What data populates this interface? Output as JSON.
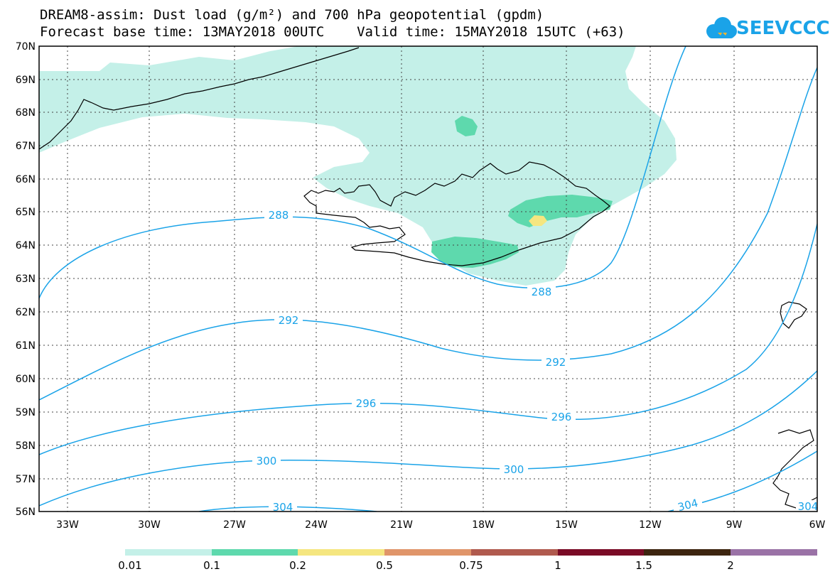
{
  "header": {
    "title_line1": "DREAM8-assim: Dust load (g/m²) and 700 hPa geopotential (gpdm)",
    "title_line2": "Forecast base time: 13MAY2018 00UTC    Valid time: 15MAY2018 15UTC (+63)"
  },
  "logo": {
    "text": "SEEVCCC",
    "color": "#1aa3e8"
  },
  "map": {
    "lat_labels": [
      "70N",
      "69N",
      "68N",
      "67N",
      "66N",
      "65N",
      "64N",
      "63N",
      "62N",
      "61N",
      "60N",
      "59N",
      "58N",
      "57N",
      "56N"
    ],
    "lon_labels": [
      "33W",
      "30W",
      "27W",
      "24W",
      "21W",
      "18W",
      "15W",
      "12W",
      "9W",
      "6W"
    ],
    "contour_labels": [
      {
        "text": "288"
      },
      {
        "text": "288"
      },
      {
        "text": "292"
      },
      {
        "text": "292"
      },
      {
        "text": "296"
      },
      {
        "text": "296"
      },
      {
        "text": "300"
      },
      {
        "text": "300"
      },
      {
        "text": "304"
      },
      {
        "text": "304"
      },
      {
        "text": "304"
      }
    ],
    "contour_color": "#1aa3e8"
  },
  "colorbar": {
    "colors": [
      "#c4f0e8",
      "#5ed9ad",
      "#f5e680",
      "#e0956a",
      "#b05a4e",
      "#7a0b26",
      "#3d2510",
      "#9a72a6"
    ],
    "labels": [
      "0.01",
      "0.1",
      "0.2",
      "0.5",
      "0.75",
      "1",
      "1.5",
      "2"
    ]
  }
}
